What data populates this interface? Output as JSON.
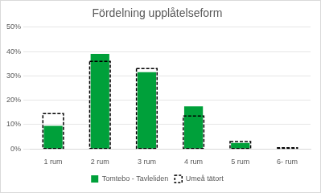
{
  "chart_data": {
    "type": "bar",
    "title": "Fördelning upplåtelseform",
    "categories": [
      "1 rum",
      "2 rum",
      "3 rum",
      "4 rum",
      "5 rum",
      "6- rum"
    ],
    "series": [
      {
        "name": "Tomtebo - Tavleliden",
        "color": "#00a03a",
        "line_style": "solid",
        "values": [
          9.5,
          39,
          31.5,
          17.5,
          2.5,
          0
        ]
      },
      {
        "name": "Umeå tätort",
        "color": "#000000",
        "line_style": "dashed",
        "values": [
          14.5,
          36,
          33,
          13.5,
          3,
          0.5
        ]
      }
    ],
    "ylim": [
      0,
      50
    ],
    "yticks": [
      {
        "value": 0,
        "label": "0%"
      },
      {
        "value": 10,
        "label": "10%"
      },
      {
        "value": 20,
        "label": "20%"
      },
      {
        "value": 30,
        "label": "30%"
      },
      {
        "value": 40,
        "label": "40%"
      },
      {
        "value": 50,
        "label": "50%"
      }
    ],
    "grid": true,
    "legend": "bottom"
  }
}
